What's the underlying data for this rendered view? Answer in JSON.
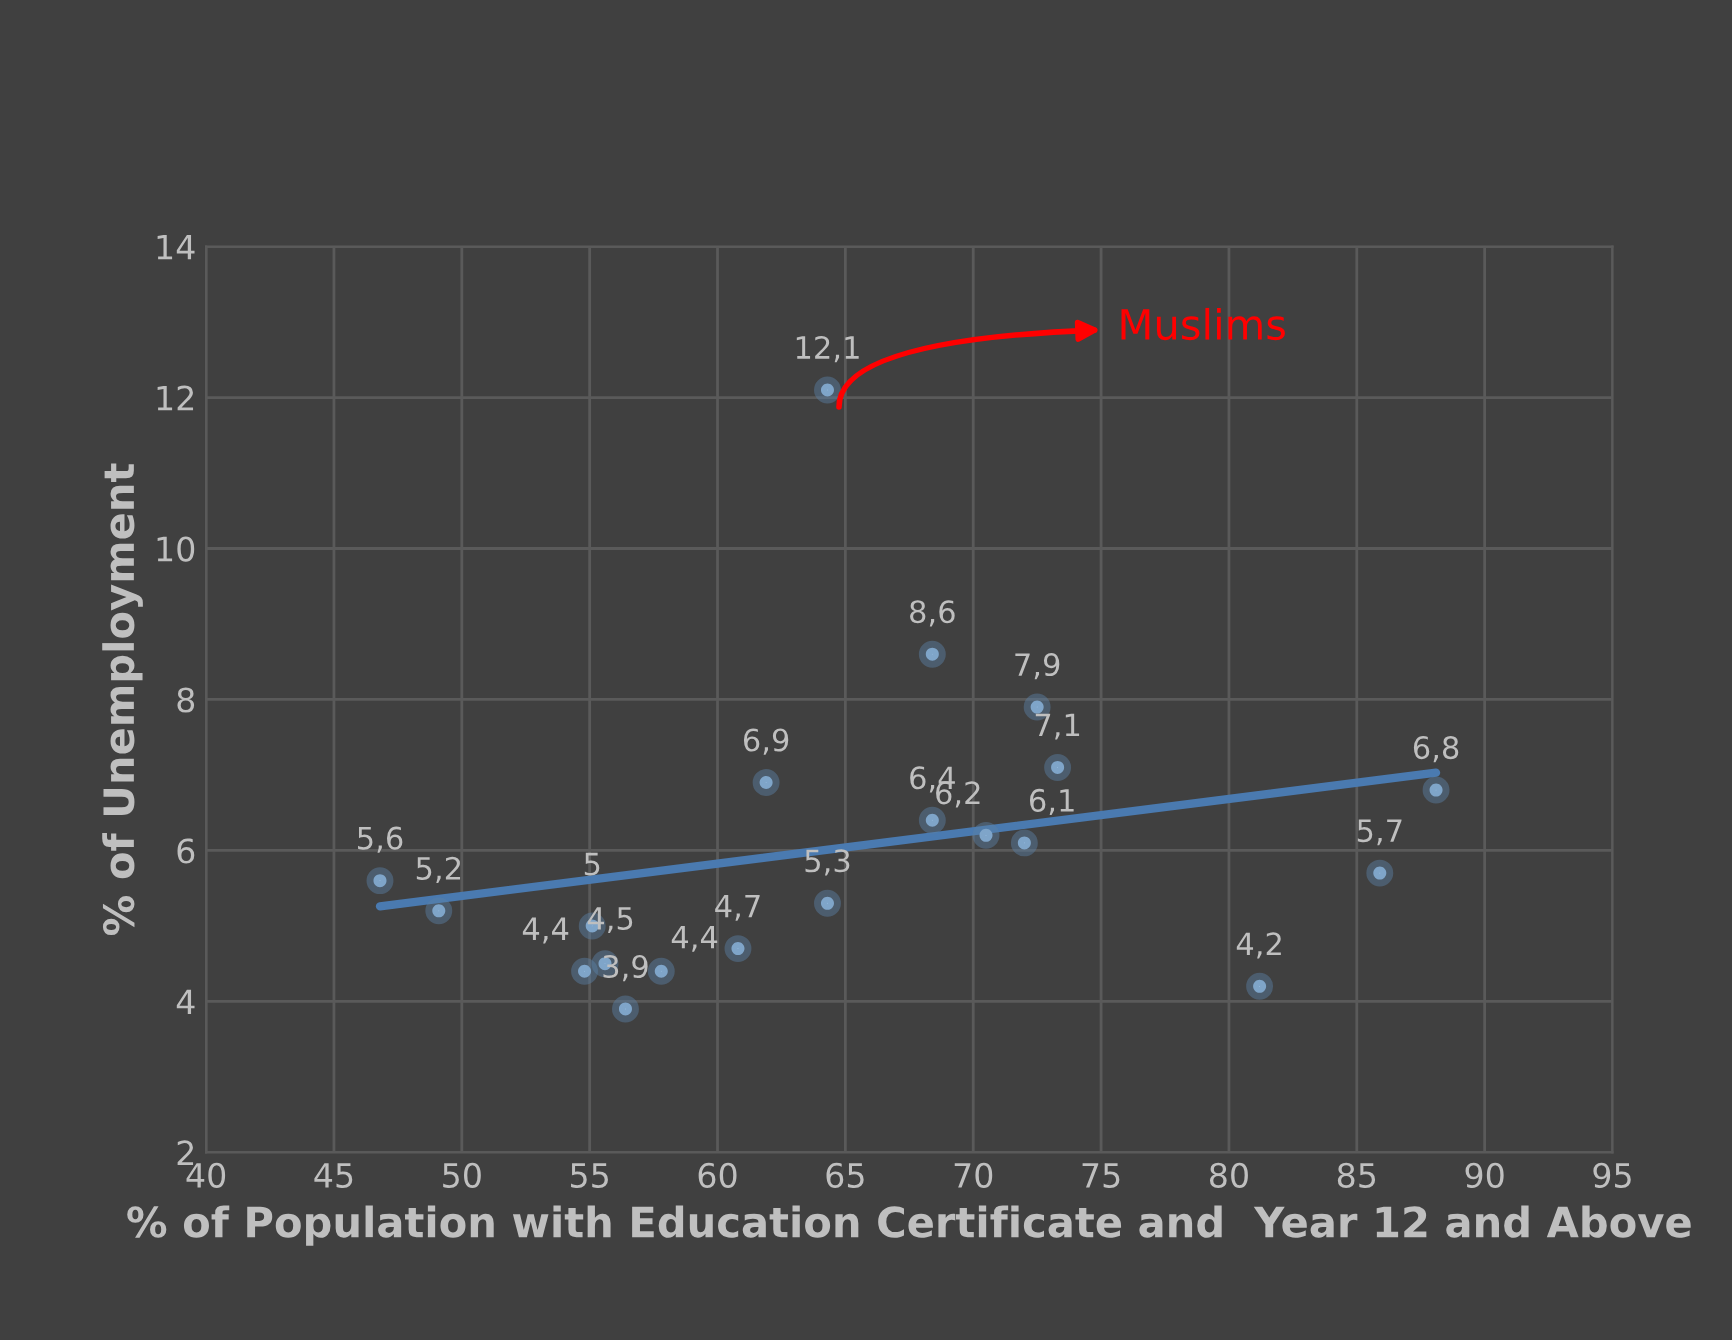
{
  "chart_data": {
    "type": "scatter",
    "xlabel": "% of Population with Education Certificate and  Year 12 and Above",
    "ylabel": "% of Unemployment",
    "xlim": [
      40,
      95
    ],
    "xticks": [
      40,
      45,
      50,
      55,
      60,
      65,
      70,
      75,
      80,
      85,
      90,
      95
    ],
    "ylim": [
      2,
      14
    ],
    "yticks": [
      2,
      4,
      6,
      8,
      10,
      12,
      14
    ],
    "grid": true,
    "series": [
      {
        "type": "scatter",
        "marker": "circle",
        "color": "#9dc3e6",
        "x": [
          46.8,
          49.1,
          55.1,
          55.6,
          54.8,
          56.4,
          57.8,
          60.8,
          64.3,
          61.9,
          64.3,
          68.4,
          68.4,
          70.5,
          72.0,
          72.5,
          73.3,
          81.2,
          85.9,
          88.1
        ],
        "values": [
          5.6,
          5.2,
          5,
          4.5,
          4.4,
          3.9,
          4.4,
          4.7,
          5.3,
          6.9,
          12.1,
          8.6,
          6.4,
          6.2,
          6.1,
          7.9,
          7.1,
          4.2,
          5.7,
          6.8
        ],
        "value_labels": [
          "5,6",
          "5,2",
          "5",
          "4,5",
          "4,4",
          "3,9",
          "4,4",
          "4,7",
          "5,3",
          "6,9",
          "12,1",
          "8,6",
          "6,4",
          "6,2",
          "6,1",
          "7,9",
          "7,1",
          "4,2",
          "5,7",
          "6,8"
        ]
      },
      {
        "type": "line",
        "marker": "none",
        "color": "#4a7ab0",
        "x": [
          46.8,
          88.1
        ],
        "values": [
          5.26,
          7.03
        ]
      }
    ],
    "annotations": [
      "Muslims"
    ]
  }
}
